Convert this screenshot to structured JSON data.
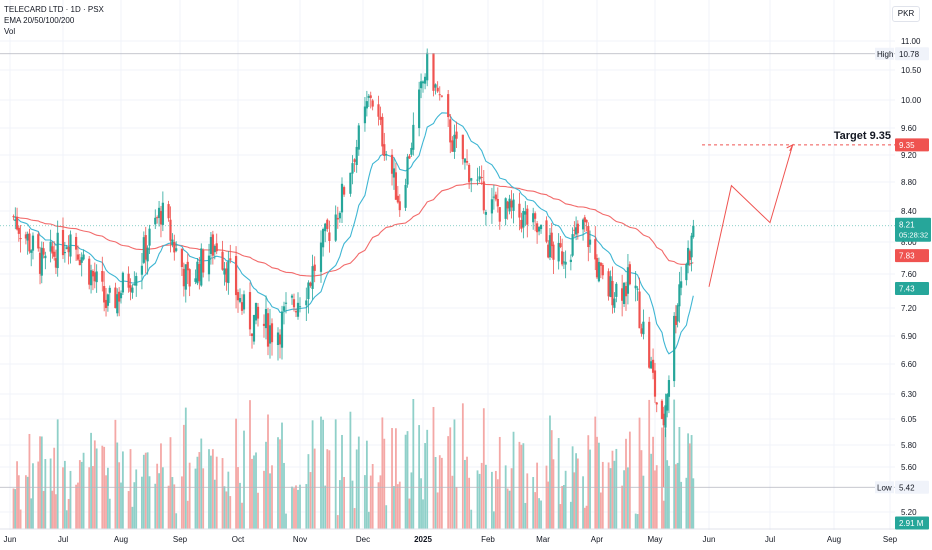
{
  "header": {
    "title": "TELECARD LTD · 1D · PSX",
    "indicator": "EMA 20/50/100/200",
    "volume": "Vol"
  },
  "currency_button": "PKR",
  "colors": {
    "up": "#26a69a",
    "down": "#ef5350",
    "vol_up": "#8fd0c9",
    "vol_down": "#f4a8a6",
    "ema_fast": "#3fb6d3",
    "ema_slow": "#f26b6b",
    "grid": "#f0f3fa",
    "target": "#ef5350"
  },
  "y_ticks": [
    "11.00",
    "10.50",
    "10.00",
    "9.60",
    "9.20",
    "8.80",
    "8.40",
    "8.00",
    "7.60",
    "7.20",
    "6.90",
    "6.60",
    "6.30",
    "6.05",
    "5.80",
    "5.60",
    "5.20"
  ],
  "x_ticks": [
    "Jun",
    "Jul",
    "Aug",
    "Sep",
    "Oct",
    "Nov",
    "Dec",
    "2025",
    "Feb",
    "Mar",
    "Apr",
    "May",
    "Jun",
    "Jul",
    "Aug",
    "Sep"
  ],
  "annotations": {
    "high_label": "High",
    "high_value": "10.78",
    "low_label": "Low",
    "low_value": "5.42",
    "target_label": "Target 9.35",
    "target_tag": "9.35",
    "last_price": "8.21",
    "countdown": "05:28:32",
    "ema_slow_tag": "7.83",
    "ema_fast_tag": "7.43",
    "volume_tag": "2.91 M"
  },
  "chart_data": {
    "type": "candlestick",
    "symbol": "TELECARD LTD",
    "interval": "1D",
    "exchange": "PSX",
    "currency": "PKR",
    "y_range": [
      5.1,
      11.2
    ],
    "x_range": [
      "2024-06-01",
      "2025-09-30"
    ],
    "key_points": [
      {
        "date": "2024-06-01",
        "close": 8.4
      },
      {
        "date": "2024-06-20",
        "close": 7.7
      },
      {
        "date": "2024-07-05",
        "close": 8.1
      },
      {
        "date": "2024-07-25",
        "close": 7.2
      },
      {
        "date": "2024-08-10",
        "close": 7.7
      },
      {
        "date": "2024-08-22",
        "close": 8.4
      },
      {
        "date": "2024-09-05",
        "close": 7.5
      },
      {
        "date": "2024-09-20",
        "close": 8.0
      },
      {
        "date": "2024-10-05",
        "close": 7.1
      },
      {
        "date": "2024-10-20",
        "close": 6.95
      },
      {
        "date": "2024-11-05",
        "close": 7.5
      },
      {
        "date": "2024-11-20",
        "close": 8.5
      },
      {
        "date": "2024-12-05",
        "close": 10.1
      },
      {
        "date": "2024-12-20",
        "close": 8.5
      },
      {
        "date": "2025-01-03",
        "close": 10.6
      },
      {
        "date": "2025-01-15",
        "close": 9.4
      },
      {
        "date": "2025-02-01",
        "close": 8.5
      },
      {
        "date": "2025-02-20",
        "close": 8.3
      },
      {
        "date": "2025-03-10",
        "close": 7.8
      },
      {
        "date": "2025-03-25",
        "close": 8.2
      },
      {
        "date": "2025-04-05",
        "close": 7.4
      },
      {
        "date": "2025-04-20",
        "close": 7.5
      },
      {
        "date": "2025-05-05",
        "close": 5.9
      },
      {
        "date": "2025-05-15",
        "close": 7.5
      },
      {
        "date": "2025-05-25",
        "close": 8.21
      }
    ],
    "high": 10.78,
    "low": 5.42,
    "last_close": 8.21,
    "ema_fast_last": 7.43,
    "ema_slow_last": 7.83,
    "last_volume": "2.91 M",
    "target": 9.35,
    "projection": [
      {
        "date": "2025-06-01",
        "price": 7.45
      },
      {
        "date": "2025-06-12",
        "price": 8.75
      },
      {
        "date": "2025-07-01",
        "price": 8.25
      },
      {
        "date": "2025-07-12",
        "price": 9.35
      }
    ]
  }
}
